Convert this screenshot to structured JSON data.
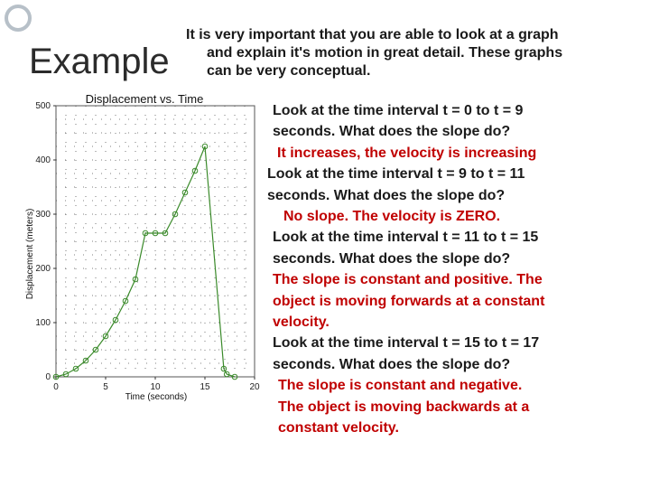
{
  "slide": {
    "heading": "Example",
    "intro_lines": [
      "It is very important that you are able to look at a graph",
      "and explain it's motion in great detail. These graphs",
      "can be very conceptual."
    ],
    "notes": [
      {
        "kind": "q",
        "text": "Look at the time interval t = 0 to t = 9"
      },
      {
        "kind": "q",
        "text": "seconds.  What does the slope do?"
      },
      {
        "kind": "a",
        "text": "It increases, the velocity is increasing"
      },
      {
        "kind": "q",
        "text": "Look at the time interval t = 9 to t = 11"
      },
      {
        "kind": "q",
        "text": "seconds. What does the slope do?"
      },
      {
        "kind": "a",
        "text": "No slope. The velocity is ZERO."
      },
      {
        "kind": "q",
        "text": "Look at the time interval t = 11 to t = 15"
      },
      {
        "kind": "q",
        "text": "seconds. What does the slope do?"
      },
      {
        "kind": "a",
        "text": "The slope is constant and positive. The"
      },
      {
        "kind": "a",
        "text": "object is moving forwards at a constant"
      },
      {
        "kind": "a",
        "text": "velocity."
      },
      {
        "kind": "q",
        "text": "Look at the time interval t = 15 to t = 17"
      },
      {
        "kind": "q",
        "text": "seconds. What does the slope do?"
      },
      {
        "kind": "a",
        "text": "The slope is constant and negative."
      },
      {
        "kind": "a",
        "text": "The object is moving backwards at a"
      },
      {
        "kind": "a",
        "text": "constant velocity."
      }
    ],
    "colors": {
      "question": "#1a1a1a",
      "answer": "#c00000",
      "series": "#3a8a2a"
    }
  },
  "chart_data": {
    "type": "line",
    "title": "Displacement vs. Time",
    "xlabel": "Time (seconds)",
    "ylabel": "Displacement (meters)",
    "xlim": [
      0,
      20
    ],
    "ylim": [
      0,
      500
    ],
    "x_ticks": [
      0,
      5,
      10,
      15,
      20
    ],
    "y_ticks": [
      0,
      100,
      200,
      300,
      400,
      500
    ],
    "grid": true,
    "series": [
      {
        "x": [
          0,
          1,
          2,
          3,
          4,
          5,
          6,
          7,
          8,
          9,
          10,
          11,
          12,
          13,
          14,
          15,
          16.9,
          17.2,
          18
        ],
        "y": [
          0,
          5,
          15,
          30,
          50,
          75,
          105,
          140,
          180,
          265,
          265,
          265,
          300,
          340,
          380,
          425,
          15,
          5,
          0
        ]
      }
    ]
  }
}
